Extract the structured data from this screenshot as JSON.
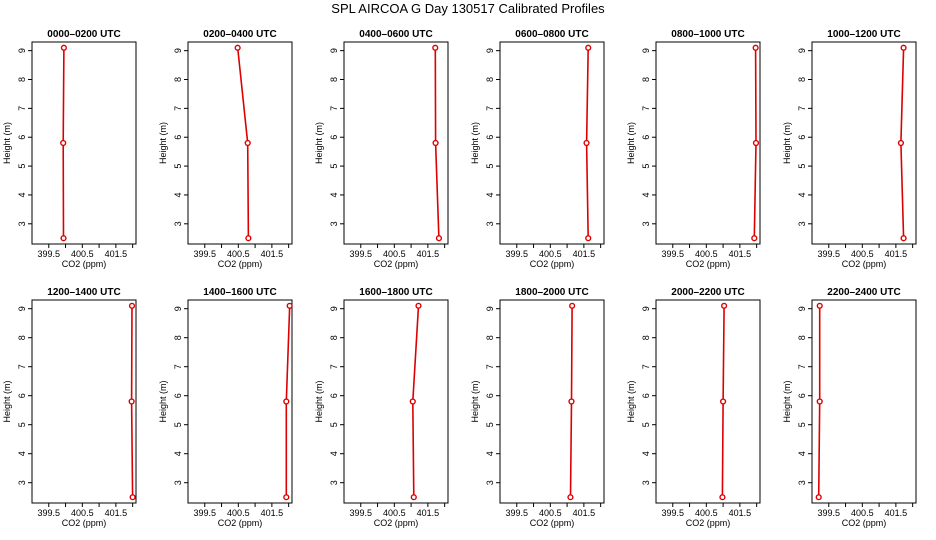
{
  "figure": {
    "title": "SPL AIRCOA G  Day 130517  Calibrated Profiles"
  },
  "style": {
    "line_color": "#dd0000",
    "marker_color": "#dd0000"
  },
  "chart_data": [
    {
      "type": "line",
      "title": "0000–0200 UTC",
      "xlabel": "CO2 (ppm)",
      "ylabel": "Height (m)",
      "xlim": [
        399.0,
        402.1
      ],
      "ylim": [
        2.3,
        9.3
      ],
      "xticks": [
        "399.5",
        "400.5",
        "401.5"
      ],
      "yticks": [
        "3",
        "4",
        "5",
        "6",
        "7",
        "8",
        "9"
      ],
      "series": [
        {
          "x": [
            399.94,
            399.93,
            399.95
          ],
          "y": [
            2.5,
            5.8,
            9.1
          ]
        }
      ]
    },
    {
      "type": "line",
      "title": "0200–0400 UTC",
      "xlabel": "CO2 (ppm)",
      "ylabel": "Height (m)",
      "xlim": [
        399.0,
        402.1
      ],
      "ylim": [
        2.3,
        9.3
      ],
      "xticks": [
        "399.5",
        "400.5",
        "401.5"
      ],
      "yticks": [
        "3",
        "4",
        "5",
        "6",
        "7",
        "8",
        "9"
      ],
      "series": [
        {
          "x": [
            400.8,
            400.78,
            400.48
          ],
          "y": [
            2.5,
            5.8,
            9.1
          ]
        }
      ]
    },
    {
      "type": "line",
      "title": "0400–0600 UTC",
      "xlabel": "CO2 (ppm)",
      "ylabel": "Height (m)",
      "xlim": [
        399.0,
        402.1
      ],
      "ylim": [
        2.3,
        9.3
      ],
      "xticks": [
        "399.5",
        "400.5",
        "401.5"
      ],
      "yticks": [
        "3",
        "4",
        "5",
        "6",
        "7",
        "8",
        "9"
      ],
      "series": [
        {
          "x": [
            401.83,
            401.73,
            401.72
          ],
          "y": [
            2.5,
            5.8,
            9.1
          ]
        }
      ]
    },
    {
      "type": "line",
      "title": "0600–0800 UTC",
      "xlabel": "CO2 (ppm)",
      "ylabel": "Height (m)",
      "xlim": [
        399.0,
        402.1
      ],
      "ylim": [
        2.3,
        9.3
      ],
      "xticks": [
        "399.5",
        "400.5",
        "401.5"
      ],
      "yticks": [
        "3",
        "4",
        "5",
        "6",
        "7",
        "8",
        "9"
      ],
      "series": [
        {
          "x": [
            401.63,
            401.58,
            401.63
          ],
          "y": [
            2.5,
            5.8,
            9.1
          ]
        }
      ]
    },
    {
      "type": "line",
      "title": "0800–1000 UTC",
      "xlabel": "CO2 (ppm)",
      "ylabel": "Height (m)",
      "xlim": [
        399.0,
        402.1
      ],
      "ylim": [
        2.3,
        9.3
      ],
      "xticks": [
        "399.5",
        "400.5",
        "401.5"
      ],
      "yticks": [
        "3",
        "4",
        "5",
        "6",
        "7",
        "8",
        "9"
      ],
      "series": [
        {
          "x": [
            401.93,
            401.98,
            401.97
          ],
          "y": [
            2.5,
            5.8,
            9.1
          ]
        }
      ]
    },
    {
      "type": "line",
      "title": "1000–1200 UTC",
      "xlabel": "CO2 (ppm)",
      "ylabel": "Height (m)",
      "xlim": [
        399.0,
        402.1
      ],
      "ylim": [
        2.3,
        9.3
      ],
      "xticks": [
        "399.5",
        "400.5",
        "401.5"
      ],
      "yticks": [
        "3",
        "4",
        "5",
        "6",
        "7",
        "8",
        "9"
      ],
      "series": [
        {
          "x": [
            401.73,
            401.65,
            401.73
          ],
          "y": [
            2.5,
            5.8,
            9.1
          ]
        }
      ]
    },
    {
      "type": "line",
      "title": "1200–1400 UTC",
      "xlabel": "CO2 (ppm)",
      "ylabel": "Height (m)",
      "xlim": [
        399.0,
        402.1
      ],
      "ylim": [
        2.3,
        9.3
      ],
      "xticks": [
        "399.5",
        "400.5",
        "401.5"
      ],
      "yticks": [
        "3",
        "4",
        "5",
        "6",
        "7",
        "8",
        "9"
      ],
      "series": [
        {
          "x": [
            402.0,
            401.97,
            401.98
          ],
          "y": [
            2.5,
            5.8,
            9.1
          ]
        }
      ]
    },
    {
      "type": "line",
      "title": "1400–1600 UTC",
      "xlabel": "CO2 (ppm)",
      "ylabel": "Height (m)",
      "xlim": [
        399.0,
        402.1
      ],
      "ylim": [
        2.3,
        9.3
      ],
      "xticks": [
        "399.5",
        "400.5",
        "401.5"
      ],
      "yticks": [
        "3",
        "4",
        "5",
        "6",
        "7",
        "8",
        "9"
      ],
      "series": [
        {
          "x": [
            401.93,
            401.93,
            402.03
          ],
          "y": [
            2.5,
            5.8,
            9.1
          ]
        }
      ]
    },
    {
      "type": "line",
      "title": "1600–1800 UTC",
      "xlabel": "CO2 (ppm)",
      "ylabel": "Height (m)",
      "xlim": [
        399.0,
        402.1
      ],
      "ylim": [
        2.3,
        9.3
      ],
      "xticks": [
        "399.5",
        "400.5",
        "401.5"
      ],
      "yticks": [
        "3",
        "4",
        "5",
        "6",
        "7",
        "8",
        "9"
      ],
      "series": [
        {
          "x": [
            401.08,
            401.05,
            401.22
          ],
          "y": [
            2.5,
            5.8,
            9.1
          ]
        }
      ]
    },
    {
      "type": "line",
      "title": "1800–2000 UTC",
      "xlabel": "CO2 (ppm)",
      "ylabel": "Height (m)",
      "xlim": [
        399.0,
        402.1
      ],
      "ylim": [
        2.3,
        9.3
      ],
      "xticks": [
        "399.5",
        "400.5",
        "401.5"
      ],
      "yticks": [
        "3",
        "4",
        "5",
        "6",
        "7",
        "8",
        "9"
      ],
      "series": [
        {
          "x": [
            401.1,
            401.13,
            401.15
          ],
          "y": [
            2.5,
            5.8,
            9.1
          ]
        }
      ]
    },
    {
      "type": "line",
      "title": "2000–2200 UTC",
      "xlabel": "CO2 (ppm)",
      "ylabel": "Height (m)",
      "xlim": [
        399.0,
        402.1
      ],
      "ylim": [
        2.3,
        9.3
      ],
      "xticks": [
        "399.5",
        "400.5",
        "401.5"
      ],
      "yticks": [
        "3",
        "4",
        "5",
        "6",
        "7",
        "8",
        "9"
      ],
      "series": [
        {
          "x": [
            400.98,
            401.0,
            401.03
          ],
          "y": [
            2.5,
            5.8,
            9.1
          ]
        }
      ]
    },
    {
      "type": "line",
      "title": "2200–2400 UTC",
      "xlabel": "CO2 (ppm)",
      "ylabel": "Height (m)",
      "xlim": [
        399.0,
        402.1
      ],
      "ylim": [
        2.3,
        9.3
      ],
      "xticks": [
        "399.5",
        "400.5",
        "401.5"
      ],
      "yticks": [
        "3",
        "4",
        "5",
        "6",
        "7",
        "8",
        "9"
      ],
      "series": [
        {
          "x": [
            399.2,
            399.23,
            399.23
          ],
          "y": [
            2.5,
            5.8,
            9.1
          ]
        }
      ]
    }
  ]
}
